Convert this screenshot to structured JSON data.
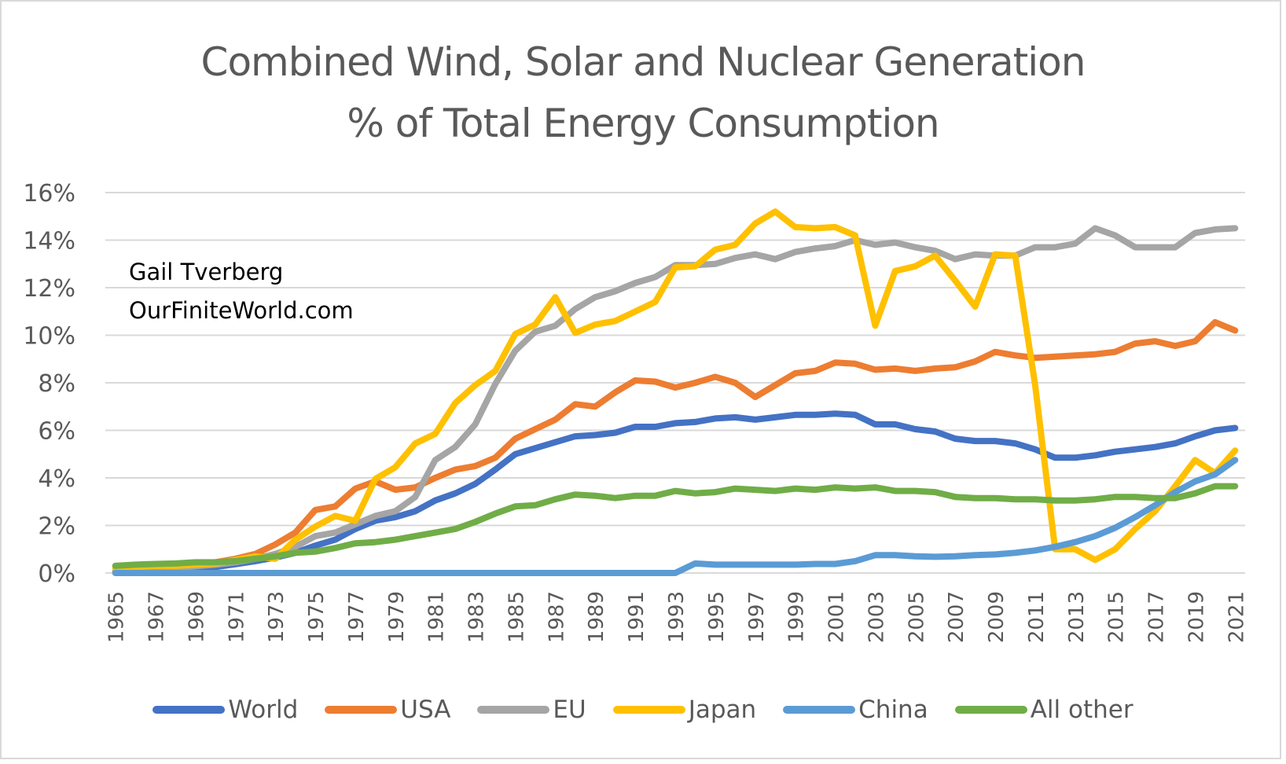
{
  "chart_data": {
    "type": "line",
    "title": "Combined Wind, Solar and Nuclear Generation",
    "subtitle": "% of Total Energy Consumption",
    "annotation": [
      "Gail Tverberg",
      "OurFiniteWorld.com"
    ],
    "xlabel": "",
    "ylabel": "",
    "ylim": [
      0,
      16
    ],
    "y_ticks": [
      "0%",
      "2%",
      "4%",
      "6%",
      "8%",
      "10%",
      "12%",
      "14%",
      "16%"
    ],
    "grid": true,
    "legend_position": "bottom",
    "x": [
      1965,
      1966,
      1967,
      1968,
      1969,
      1970,
      1971,
      1972,
      1973,
      1974,
      1975,
      1976,
      1977,
      1978,
      1979,
      1980,
      1981,
      1982,
      1983,
      1984,
      1985,
      1986,
      1987,
      1988,
      1989,
      1990,
      1991,
      1992,
      1993,
      1994,
      1995,
      1996,
      1997,
      1998,
      1999,
      2000,
      2001,
      2002,
      2003,
      2004,
      2005,
      2006,
      2007,
      2008,
      2009,
      2010,
      2011,
      2012,
      2013,
      2014,
      2015,
      2016,
      2017,
      2018,
      2019,
      2020,
      2021
    ],
    "x_tick_labels": [
      "1965",
      "1967",
      "1969",
      "1971",
      "1973",
      "1975",
      "1977",
      "1979",
      "1981",
      "1983",
      "1985",
      "1987",
      "1989",
      "1991",
      "1993",
      "1995",
      "1997",
      "1999",
      "2001",
      "2003",
      "2005",
      "2007",
      "2009",
      "2011",
      "2013",
      "2015",
      "2017",
      "2019",
      "2021"
    ],
    "series": [
      {
        "name": "World",
        "color": "#4472c4",
        "values": [
          0.05,
          0.07,
          0.1,
          0.13,
          0.18,
          0.25,
          0.37,
          0.5,
          0.65,
          0.85,
          1.15,
          1.4,
          1.85,
          2.2,
          2.35,
          2.6,
          3.05,
          3.35,
          3.75,
          4.35,
          5.0,
          5.25,
          5.5,
          5.75,
          5.8,
          5.9,
          6.15,
          6.15,
          6.3,
          6.35,
          6.5,
          6.55,
          6.45,
          6.55,
          6.65,
          6.65,
          6.7,
          6.65,
          6.25,
          6.25,
          6.05,
          5.95,
          5.65,
          5.55,
          5.55,
          5.45,
          5.2,
          4.85,
          4.85,
          4.95,
          5.1,
          5.2,
          5.3,
          5.45,
          5.75,
          6.0,
          6.1
        ]
      },
      {
        "name": "USA",
        "color": "#ed7d31",
        "values": [
          0.05,
          0.1,
          0.15,
          0.2,
          0.3,
          0.45,
          0.6,
          0.8,
          1.2,
          1.7,
          2.65,
          2.8,
          3.55,
          3.85,
          3.5,
          3.6,
          4.0,
          4.35,
          4.5,
          4.85,
          5.65,
          6.05,
          6.45,
          7.1,
          7.0,
          7.6,
          8.1,
          8.05,
          7.8,
          8.0,
          8.25,
          8.0,
          7.4,
          7.9,
          8.4,
          8.5,
          8.85,
          8.8,
          8.55,
          8.6,
          8.5,
          8.6,
          8.65,
          8.9,
          9.3,
          9.15,
          9.05,
          9.1,
          9.15,
          9.2,
          9.3,
          9.65,
          9.75,
          9.55,
          9.75,
          10.55,
          10.2
        ]
      },
      {
        "name": "EU",
        "color": "#a5a5a5",
        "values": [
          0.1,
          0.13,
          0.18,
          0.22,
          0.28,
          0.35,
          0.45,
          0.6,
          0.8,
          1.1,
          1.55,
          1.7,
          2.05,
          2.4,
          2.6,
          3.2,
          4.75,
          5.3,
          6.25,
          7.95,
          9.35,
          10.15,
          10.4,
          11.1,
          11.6,
          11.85,
          12.2,
          12.45,
          12.95,
          12.95,
          13.0,
          13.25,
          13.4,
          13.2,
          13.5,
          13.65,
          13.75,
          14.0,
          13.8,
          13.9,
          13.7,
          13.55,
          13.2,
          13.4,
          13.35,
          13.35,
          13.7,
          13.7,
          13.85,
          14.5,
          14.2,
          13.7,
          13.7,
          13.7,
          14.3,
          14.45,
          14.5
        ]
      },
      {
        "name": "Japan",
        "color": "#ffc000",
        "values": [
          0.2,
          0.25,
          0.3,
          0.3,
          0.35,
          0.4,
          0.55,
          0.7,
          0.6,
          1.4,
          1.95,
          2.4,
          2.2,
          3.95,
          4.45,
          5.45,
          5.85,
          7.15,
          7.9,
          8.5,
          10.05,
          10.45,
          11.6,
          10.1,
          10.45,
          10.6,
          11.0,
          11.4,
          12.85,
          12.9,
          13.6,
          13.8,
          14.7,
          15.2,
          14.55,
          14.5,
          14.55,
          14.2,
          10.4,
          12.7,
          12.9,
          13.35,
          12.3,
          11.2,
          13.4,
          13.35,
          7.9,
          1.0,
          1.0,
          0.55,
          1.0,
          1.85,
          2.6,
          3.65,
          4.75,
          4.2,
          5.15
        ]
      },
      {
        "name": "China",
        "color": "#5b9bd5",
        "values": [
          0,
          0,
          0,
          0,
          0,
          0,
          0,
          0,
          0,
          0,
          0,
          0,
          0,
          0,
          0,
          0,
          0,
          0,
          0,
          0,
          0,
          0,
          0,
          0,
          0,
          0,
          0,
          0,
          0,
          0.4,
          0.35,
          0.35,
          0.35,
          0.35,
          0.35,
          0.38,
          0.38,
          0.5,
          0.75,
          0.75,
          0.7,
          0.68,
          0.7,
          0.75,
          0.78,
          0.85,
          0.95,
          1.1,
          1.3,
          1.55,
          1.9,
          2.35,
          2.85,
          3.4,
          3.85,
          4.15,
          4.75
        ]
      },
      {
        "name": "All other",
        "color": "#70ad47",
        "values": [
          0.3,
          0.35,
          0.38,
          0.4,
          0.45,
          0.45,
          0.5,
          0.6,
          0.7,
          0.85,
          0.9,
          1.05,
          1.25,
          1.3,
          1.4,
          1.55,
          1.7,
          1.85,
          2.15,
          2.5,
          2.8,
          2.85,
          3.1,
          3.3,
          3.25,
          3.15,
          3.25,
          3.25,
          3.45,
          3.35,
          3.4,
          3.55,
          3.5,
          3.45,
          3.55,
          3.5,
          3.6,
          3.55,
          3.6,
          3.45,
          3.45,
          3.4,
          3.2,
          3.15,
          3.15,
          3.1,
          3.1,
          3.05,
          3.05,
          3.1,
          3.2,
          3.2,
          3.15,
          3.15,
          3.35,
          3.65,
          3.65
        ]
      }
    ]
  }
}
